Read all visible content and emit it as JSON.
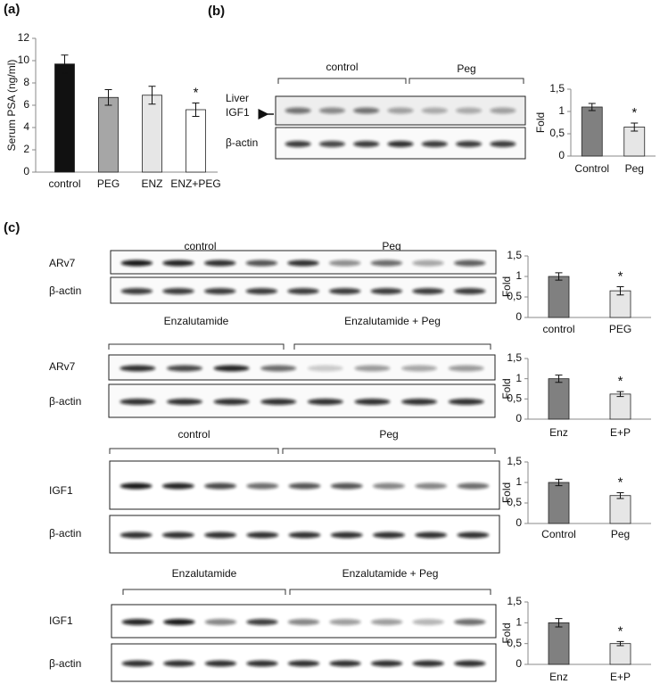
{
  "panel_labels": [
    "(a)",
    "(b)",
    "(c)"
  ],
  "chart_data": [
    {
      "type": "bar",
      "ylabel": "Serum PSA (ng/ml)",
      "categories": [
        "control",
        "PEG",
        "ENZ",
        "ENZ+PEG"
      ],
      "values": [
        9.7,
        6.7,
        6.9,
        5.6
      ],
      "errors": [
        0.8,
        0.7,
        0.8,
        0.6
      ],
      "colors": [
        "#111111",
        "#a6a6a6",
        "#e6e6e6",
        "#ffffff"
      ],
      "significance": [
        null,
        null,
        null,
        "*"
      ],
      "ylim": [
        0,
        12
      ],
      "yticks": [
        0,
        2,
        4,
        6,
        8,
        10,
        12
      ]
    },
    {
      "type": "bar",
      "ylabel": "Fold",
      "categories": [
        "Control",
        "Peg"
      ],
      "values": [
        1.1,
        0.65
      ],
      "errors": [
        0.08,
        0.09
      ],
      "colors": [
        "#808080",
        "#e6e6e6"
      ],
      "significance": [
        null,
        "*"
      ],
      "ylim": [
        0,
        1.5
      ],
      "yticks": [
        0,
        {
          "value": 0.5,
          "label": "0,5"
        },
        1,
        {
          "value": 1.5,
          "label": "1,5"
        }
      ]
    },
    {
      "type": "bar",
      "ylabel": "Fold",
      "categories": [
        "control",
        "PEG"
      ],
      "values": [
        1.0,
        0.65
      ],
      "errors": [
        0.09,
        0.1
      ],
      "colors": [
        "#808080",
        "#e6e6e6"
      ],
      "significance": [
        null,
        "*"
      ],
      "ylim": [
        0,
        1.5
      ],
      "yticks": [
        0,
        {
          "value": 0.5,
          "label": "0,5"
        },
        1,
        {
          "value": 1.5,
          "label": "1,5"
        }
      ]
    },
    {
      "type": "bar",
      "ylabel": "Fold",
      "categories": [
        "Enz",
        "E+P"
      ],
      "values": [
        1.0,
        0.62
      ],
      "errors": [
        0.09,
        0.06
      ],
      "colors": [
        "#808080",
        "#e6e6e6"
      ],
      "significance": [
        null,
        "*"
      ],
      "ylim": [
        0,
        1.5
      ],
      "yticks": [
        0,
        {
          "value": 0.5,
          "label": "0,5"
        },
        1,
        {
          "value": 1.5,
          "label": "1,5"
        }
      ]
    },
    {
      "type": "bar",
      "ylabel": "Fold",
      "categories": [
        "Control",
        "Peg"
      ],
      "values": [
        1.0,
        0.68
      ],
      "errors": [
        0.08,
        0.07
      ],
      "colors": [
        "#808080",
        "#e6e6e6"
      ],
      "significance": [
        null,
        "*"
      ],
      "ylim": [
        0,
        1.5
      ],
      "yticks": [
        0,
        {
          "value": 0.5,
          "label": "0,5"
        },
        1,
        {
          "value": 1.5,
          "label": "1,5"
        }
      ]
    },
    {
      "type": "bar",
      "ylabel": "Fold",
      "categories": [
        "Enz",
        "E+P"
      ],
      "values": [
        1.0,
        0.5
      ],
      "errors": [
        0.1,
        0.05
      ],
      "colors": [
        "#808080",
        "#e6e6e6"
      ],
      "significance": [
        null,
        "*"
      ],
      "ylim": [
        0,
        1.5
      ],
      "yticks": [
        0,
        {
          "value": 0.5,
          "label": "0,5"
        },
        1,
        {
          "value": 1.5,
          "label": "1,5"
        }
      ]
    }
  ],
  "blots": [
    {
      "groups": [
        "control",
        "Peg"
      ],
      "rows": [
        [
          "Liver",
          "IGF1"
        ],
        [
          "β-actin"
        ]
      ]
    },
    {
      "groups": [
        "control",
        "Peg"
      ],
      "rows": [
        [
          "ARv7"
        ],
        [
          "β-actin"
        ]
      ]
    },
    {
      "groups": [
        "Enzalutamide",
        "Enzalutamide + Peg"
      ],
      "rows": [
        [
          "ARv7"
        ],
        [
          "β-actin"
        ]
      ]
    },
    {
      "groups": [
        "control",
        "Peg"
      ],
      "rows": [
        [
          "IGF1"
        ],
        [
          "β-actin"
        ]
      ]
    },
    {
      "groups": [
        "Enzalutamide",
        "Enzalutamide + Peg"
      ],
      "rows": [
        [
          "IGF1"
        ],
        [
          "β-actin"
        ]
      ]
    }
  ]
}
